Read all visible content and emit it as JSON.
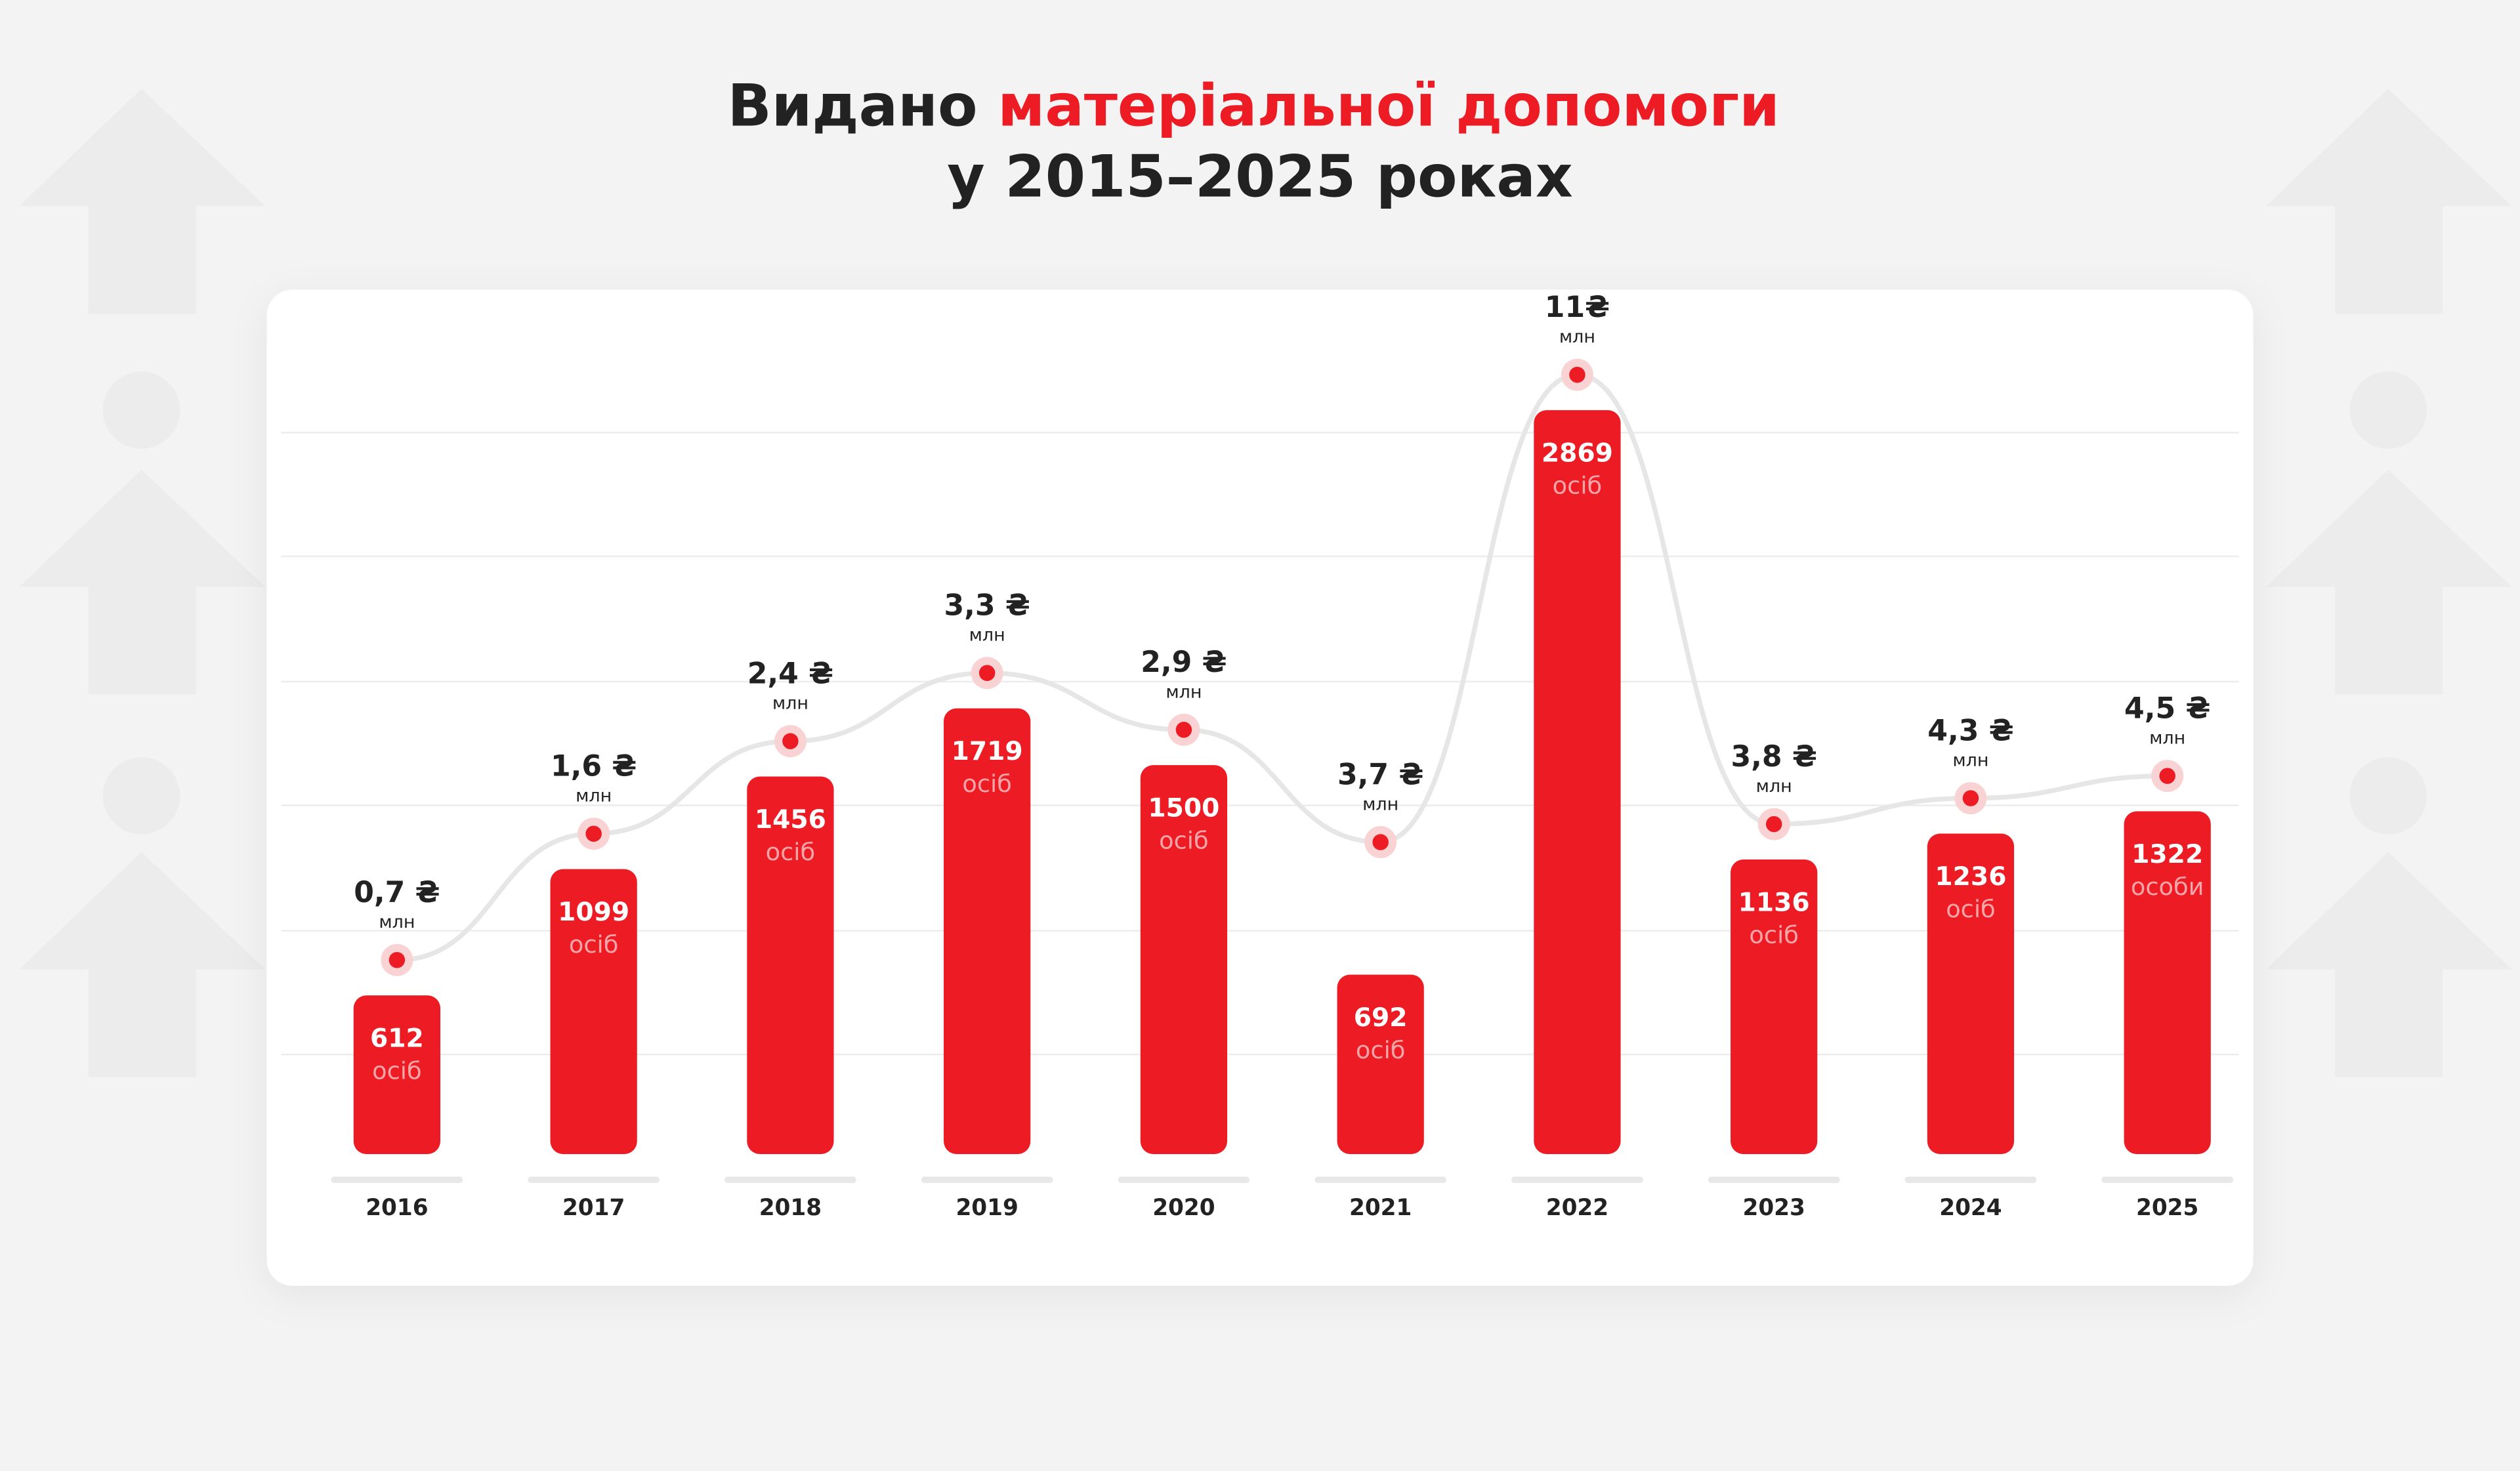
{
  "title": {
    "line1_dark": "Видано",
    "line1_red": "матеріальної допомоги",
    "line2": "у 2015–2025 роках"
  },
  "colors": {
    "accent": "#ed1c24",
    "text": "#222222",
    "line": "#e6e6e6",
    "background": "#f3f3f3",
    "card": "#ffffff"
  },
  "chart_data": {
    "type": "bar",
    "categories": [
      "2016",
      "2017",
      "2018",
      "2019",
      "2020",
      "2021",
      "2022",
      "2023",
      "2024",
      "2025"
    ],
    "series": [
      {
        "type": "bar",
        "values": [
          612,
          1099,
          1456,
          1719,
          1500,
          692,
          2869,
          1136,
          1236,
          1322
        ],
        "labels": [
          "осіб",
          "осіб",
          "осіб",
          "осіб",
          "осіб",
          "осіб",
          "осіб",
          "осіб",
          "осіб",
          "особи"
        ]
      },
      {
        "type": "line",
        "values": [
          0.7,
          1.6,
          2.4,
          3.3,
          2.9,
          3.7,
          11,
          3.8,
          4.3,
          4.5
        ],
        "value_labels": [
          "0,7 ₴",
          "1,6 ₴",
          "2,4 ₴",
          "3,3 ₴",
          "2,9 ₴",
          "3,7 ₴",
          "11₴",
          "3,8 ₴",
          "4,3 ₴",
          "4,5 ₴"
        ],
        "unit": "млн"
      }
    ],
    "grid": true
  }
}
